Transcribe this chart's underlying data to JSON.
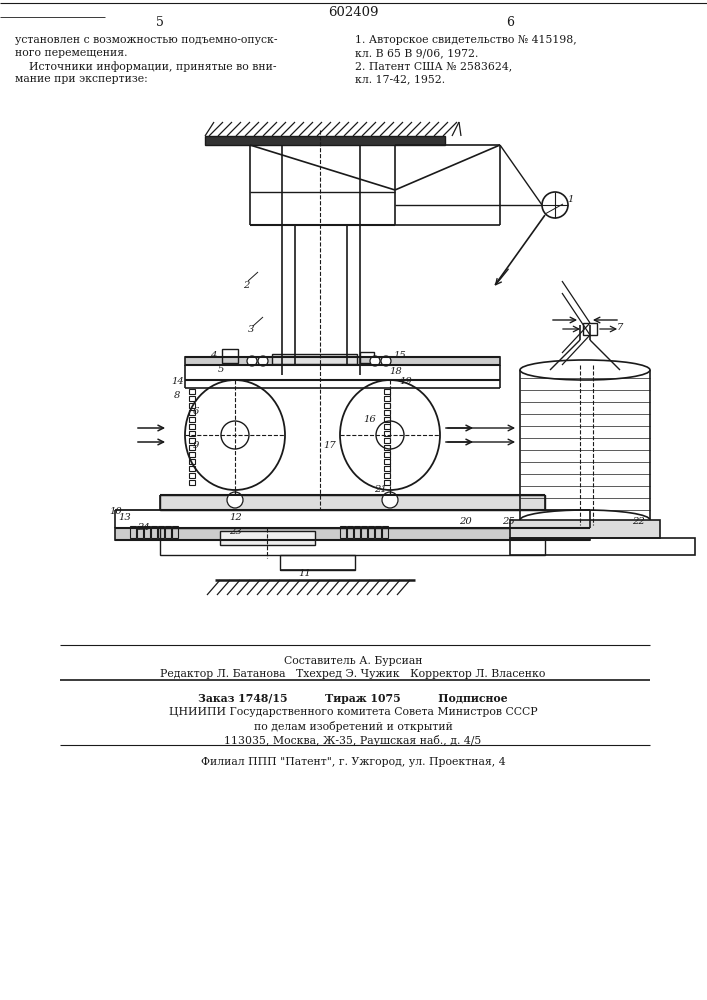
{
  "patent_number": "602409",
  "page_left": "5",
  "page_right": "6",
  "left_text": [
    "установлен с возможностью подъемно-опуск-",
    "ного перемещения.",
    "    Источники информации, принятые во вни-",
    "мание при экспертизе:"
  ],
  "right_text": [
    "1. Авторское свидетельство № 415198,",
    "кл. В 65 В 9/06, 1972.",
    "2. Патент США № 2583624,",
    "кл. 17-42, 1952."
  ],
  "btl1": "Составитель А. Бурсиан",
  "btl2": "Редактор Л. Батанова   Тхехред Э. Чужик   Корректор Л. Власенко",
  "btl3": "Заказ 1748/15          Тираж 1075          Подписное",
  "btl4": "ЦНИИПИ Государственного комитета Совета Министров СССР",
  "btl5": "по делам изобретений и открытий",
  "btl6": "113035, Москва, Ж-35, Раушская наб., д. 4/5",
  "btl7": "Филиал ППП \"Патент\", г. Ужгород, ул. Проектная, 4",
  "bg": "#ffffff",
  "lc": "#1a1a1a",
  "tc": "#1a1a1a"
}
